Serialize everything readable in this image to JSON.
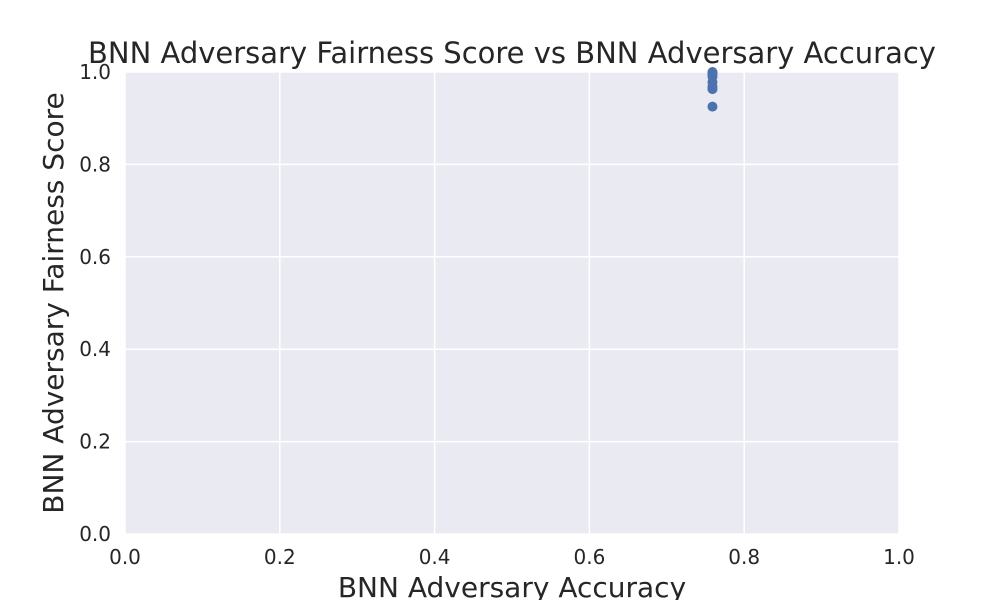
{
  "chart_data": {
    "type": "scatter",
    "title": "BNN Adversary Fairness Score vs BNN Adversary Accuracy",
    "xlabel": "BNN Adversary Accuracy",
    "ylabel": "BNN Adversary Fairness Score",
    "xlim": [
      0.0,
      1.0
    ],
    "ylim": [
      0.0,
      1.0
    ],
    "xticks": [
      "0.0",
      "0.2",
      "0.4",
      "0.6",
      "0.8",
      "1.0"
    ],
    "yticks": [
      "0.0",
      "0.2",
      "0.4",
      "0.6",
      "0.8",
      "1.0"
    ],
    "grid": true,
    "colors": {
      "background": "#EAEAF2",
      "grid": "#FFFFFF",
      "marker": "#4C72B0",
      "text": "#262626"
    },
    "series": [
      {
        "x": [
          0.759,
          0.759,
          0.759,
          0.759,
          0.759,
          0.759,
          0.759,
          0.759
        ],
        "y": [
          1.0,
          0.998,
          0.995,
          0.99,
          0.978,
          0.968,
          0.963,
          0.925
        ]
      }
    ]
  }
}
